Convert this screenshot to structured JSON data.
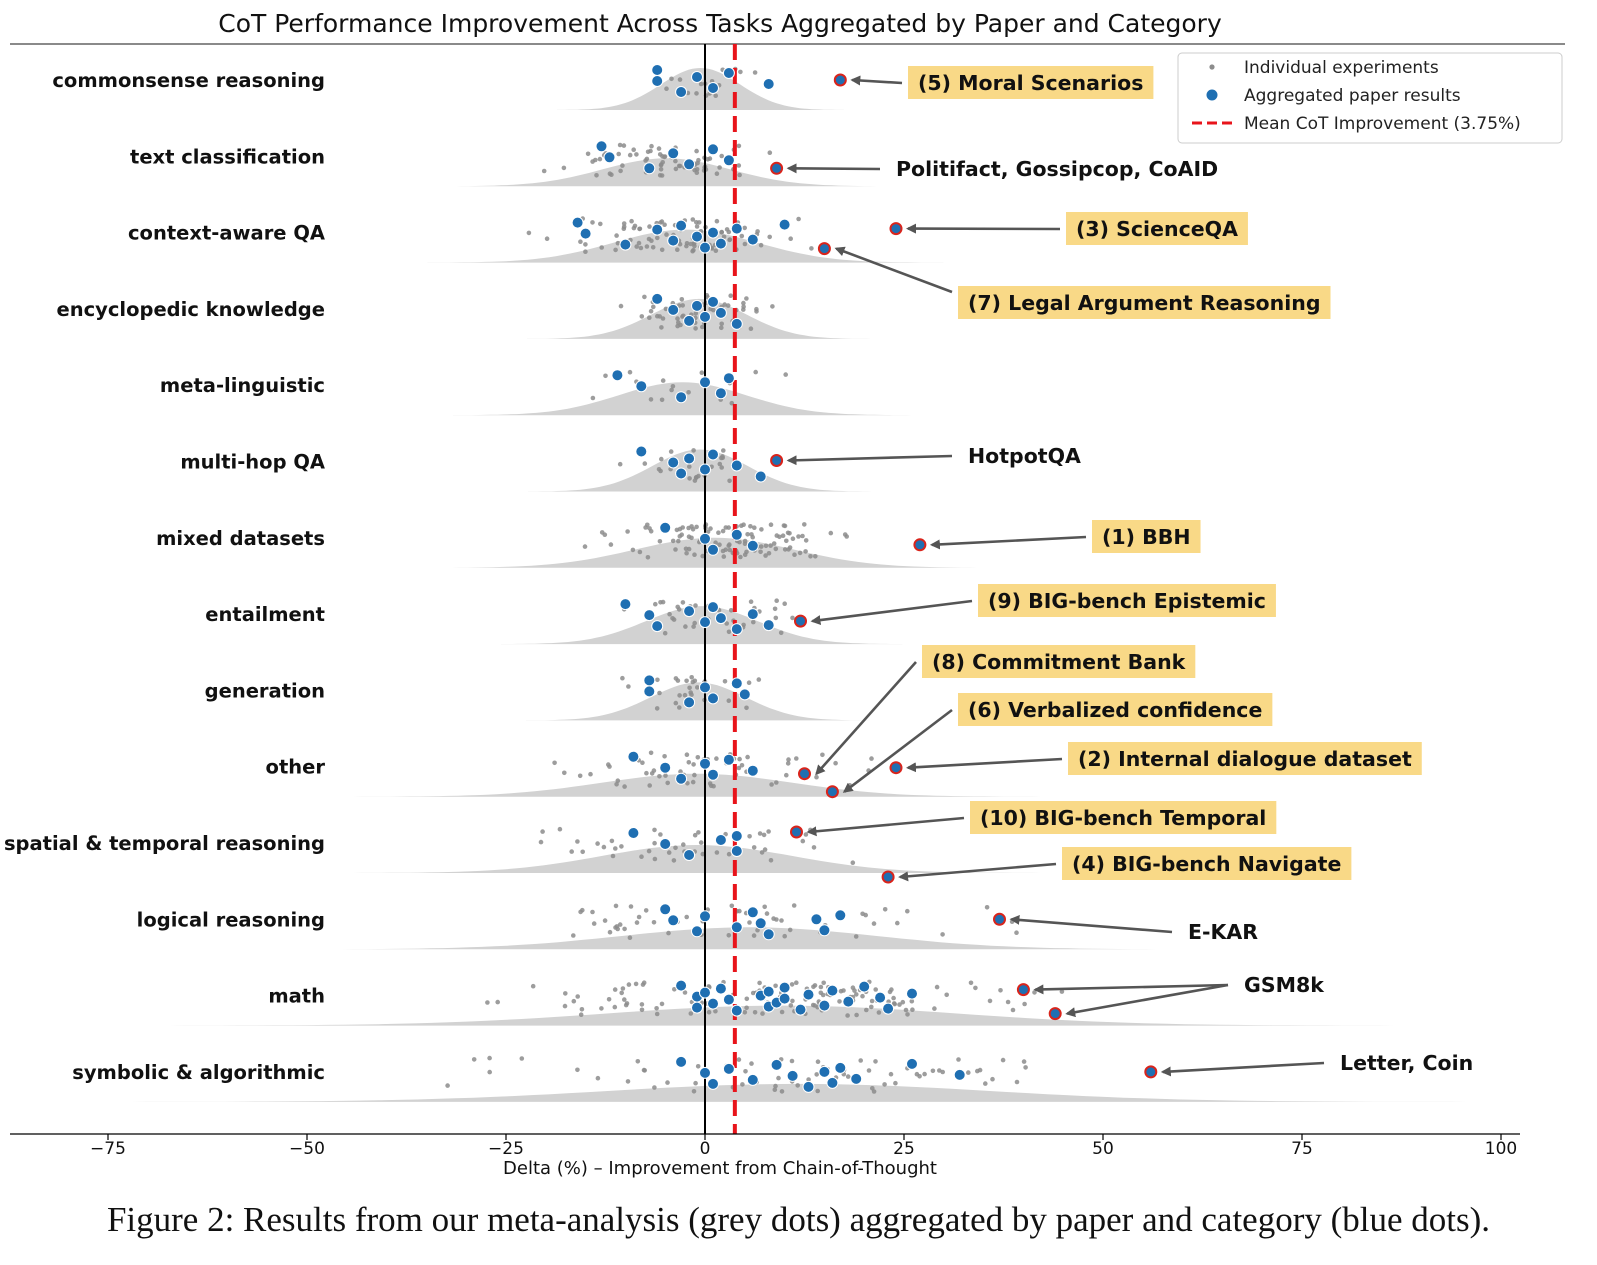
{
  "chart_data": {
    "type": "scatter",
    "title": "CoT Performance Improvement Across Tasks Aggregated by Paper and Category",
    "xlabel": "Delta (%) – Improvement from Chain-of-Thought",
    "ylabel": "",
    "xlim": [
      -76,
      100
    ],
    "xticks": [
      -75,
      -50,
      -25,
      0,
      25,
      50,
      75,
      100
    ],
    "xtick_labels": [
      "−75",
      "−50",
      "−25",
      "0",
      "25",
      "50",
      "75",
      "100"
    ],
    "mean_improvement": 3.75,
    "grid": false,
    "legend_position": "top-right",
    "legend": [
      {
        "label": "Individual experiments",
        "marker": "small-grey-dot"
      },
      {
        "label": "Aggregated paper results",
        "marker": "blue-dot"
      },
      {
        "label": "Mean CoT Improvement (3.75%)",
        "marker": "red-dashed-line"
      }
    ],
    "categories": [
      "commonsense reasoning",
      "text classification",
      "context-aware QA",
      "encyclopedic knowledge",
      "meta-linguistic",
      "multi-hop QA",
      "mixed datasets",
      "entailment",
      "generation",
      "other",
      "spatial & temporal reasoning",
      "logical reasoning",
      "math",
      "symbolic & algorithmic"
    ],
    "aggregated_points": [
      {
        "category": "commonsense reasoning",
        "x": [
          -6,
          -6,
          -3,
          -1,
          1,
          3,
          8
        ]
      },
      {
        "category": "text classification",
        "x": [
          -13,
          -12,
          -7,
          -4,
          -2,
          1,
          3
        ]
      },
      {
        "category": "context-aware QA",
        "x": [
          -16,
          -15,
          -10,
          -6,
          -4,
          -3,
          -1,
          0,
          1,
          2,
          4,
          6,
          10
        ]
      },
      {
        "category": "encyclopedic knowledge",
        "x": [
          -6,
          -4,
          -2,
          -1,
          0,
          1,
          2,
          4
        ]
      },
      {
        "category": "meta-linguistic",
        "x": [
          -11,
          -8,
          -3,
          0,
          2,
          3
        ]
      },
      {
        "category": "multi-hop QA",
        "x": [
          -8,
          -4,
          -3,
          -2,
          0,
          1,
          4,
          7
        ]
      },
      {
        "category": "mixed datasets",
        "x": [
          -5,
          0,
          1,
          4,
          6
        ]
      },
      {
        "category": "entailment",
        "x": [
          -10,
          -7,
          -6,
          -2,
          0,
          1,
          2,
          4,
          6,
          8
        ]
      },
      {
        "category": "generation",
        "x": [
          -7,
          -7,
          -2,
          0,
          1,
          4,
          5
        ]
      },
      {
        "category": "other",
        "x": [
          -9,
          -5,
          -3,
          0,
          1,
          3,
          6
        ]
      },
      {
        "category": "spatial & temporal reasoning",
        "x": [
          -9,
          -5,
          -2,
          2,
          4,
          4
        ]
      },
      {
        "category": "logical reasoning",
        "x": [
          -5,
          -4,
          -1,
          0,
          4,
          6,
          7,
          8,
          14,
          15,
          17
        ]
      },
      {
        "category": "math",
        "x": [
          -3,
          -1,
          -1,
          0,
          1,
          2,
          3,
          4,
          7,
          8,
          8,
          9,
          10,
          10,
          12,
          13,
          15,
          16,
          18,
          20,
          22,
          23,
          26
        ]
      },
      {
        "category": "symbolic & algorithmic",
        "x": [
          -3,
          0,
          1,
          3,
          6,
          9,
          11,
          13,
          15,
          16,
          17,
          19,
          26,
          32
        ]
      }
    ],
    "annotations": [
      {
        "label": "(5) Moral Scenarios",
        "category": "commonsense reasoning",
        "x": 17,
        "highlight": true
      },
      {
        "label": "Politifact, Gossipcop, CoAID",
        "category": "text classification",
        "x": 9,
        "highlight": false
      },
      {
        "label": "(3) ScienceQA",
        "category": "context-aware QA",
        "x": 24,
        "highlight": true
      },
      {
        "label": "(7) Legal Argument Reasoning",
        "category": "context-aware QA",
        "x": 15,
        "highlight": true
      },
      {
        "label": "HotpotQA",
        "category": "multi-hop QA",
        "x": 9,
        "highlight": false
      },
      {
        "label": "(1) BBH",
        "category": "mixed datasets",
        "x": 27,
        "highlight": true
      },
      {
        "label": "(9) BIG-bench Epistemic",
        "category": "entailment",
        "x": 12,
        "highlight": true
      },
      {
        "label": "(8) Commitment Bank",
        "category": "other",
        "x": 12.5,
        "highlight": true
      },
      {
        "label": "(6) Verbalized confidence",
        "category": "other",
        "x": 16,
        "highlight": true
      },
      {
        "label": "(2) Internal dialogue dataset",
        "category": "other",
        "x": 24,
        "highlight": true
      },
      {
        "label": "(10) BIG-bench Temporal",
        "category": "spatial & temporal reasoning",
        "x": 11.5,
        "highlight": true
      },
      {
        "label": "(4) BIG-bench Navigate",
        "category": "spatial & temporal reasoning",
        "x": 23,
        "highlight": true
      },
      {
        "label": "E-KAR",
        "category": "logical reasoning",
        "x": 37,
        "highlight": false
      },
      {
        "label": "GSM8k",
        "category": "math",
        "x": [
          40,
          44
        ],
        "highlight": false
      },
      {
        "label": "Letter, Coin",
        "category": "symbolic & algorithmic",
        "x": 56,
        "highlight": false
      }
    ]
  },
  "caption": "Figure 2: Results from our meta-analysis (grey dots) aggregated by paper and category (blue dots).",
  "colors": {
    "individual": "#8c8c8c",
    "aggregated": "#1f6fb2",
    "mean_line": "#e8141b",
    "highlight_box": "#f9d987",
    "density": "#d2d2d2",
    "outlier_edge": "#d9241b"
  }
}
